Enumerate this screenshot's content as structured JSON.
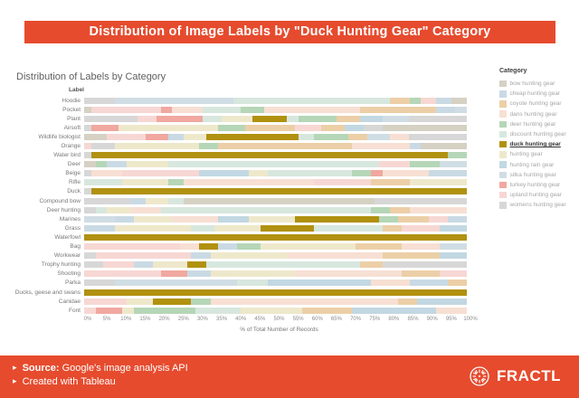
{
  "banner": {
    "title": "Distribution of Image Labels by \"Duck Hunting Gear\" Category"
  },
  "chart": {
    "title": "Distribution of Labels by Category",
    "y_header": "Label",
    "x_label": "% of Total Number of Records"
  },
  "legend": {
    "title": "Category"
  },
  "footer": {
    "bullet": "▸",
    "source_label": "Source:",
    "source_value": "Google's image analysis API",
    "created_line": "Created with Tableau",
    "brand": "FRACTL",
    "bg_color": "#e64b2e"
  },
  "colors": {
    "accent": "#e64b2e",
    "highlight_bar": "#b19110"
  },
  "chart_data": {
    "type": "bar",
    "subtype": "100%-stacked-horizontal",
    "title": "Distribution of Labels by Category",
    "xlabel": "% of Total Number of Records",
    "ylabel": "Label",
    "xlim": [
      0,
      100
    ],
    "grid": false,
    "legend_position": "right",
    "x_ticks": [
      "0%",
      "5%",
      "10%",
      "15%",
      "20%",
      "25%",
      "30%",
      "35%",
      "40%",
      "45%",
      "50%",
      "55%",
      "60%",
      "65%",
      "70%",
      "75%",
      "80%",
      "85%",
      "90%",
      "95%",
      "100%"
    ],
    "highlighted_category": "duck hunting gear",
    "categories": [
      {
        "key": "bow",
        "name": "bow hunting gear",
        "color": "#d5d1c3"
      },
      {
        "key": "cheap",
        "name": "cheap hunting gear",
        "color": "#c9dae4"
      },
      {
        "key": "coyote",
        "name": "coyote hunting gear",
        "color": "#eccfa7"
      },
      {
        "key": "dans",
        "name": "dans hunting gear",
        "color": "#f7dfd3"
      },
      {
        "key": "deer",
        "name": "deer hunting gear",
        "color": "#b5d6b7"
      },
      {
        "key": "discount",
        "name": "discount hunting gear",
        "color": "#d7e7de"
      },
      {
        "key": "duck",
        "name": "duck hunting gear",
        "color": "#b19110"
      },
      {
        "key": "hunting",
        "name": "hunting gear",
        "color": "#eee8cb"
      },
      {
        "key": "rain",
        "name": "hunting rain gear",
        "color": "#c2d8e2"
      },
      {
        "key": "sitka",
        "name": "sitka hunting gear",
        "color": "#d0dde4"
      },
      {
        "key": "turkey",
        "name": "turkey hunting gear",
        "color": "#f0a8a0"
      },
      {
        "key": "upland",
        "name": "upland hunting gear",
        "color": "#f7d7d3"
      },
      {
        "key": "womens",
        "name": "womens hunting gear",
        "color": "#d7d7d7"
      }
    ],
    "rows": [
      {
        "label": "Hoodie",
        "segments": [
          {
            "cat": "womens",
            "pct": 8
          },
          {
            "cat": "sitka",
            "pct": 31
          },
          {
            "cat": "discount",
            "pct": 41
          },
          {
            "cat": "coyote",
            "pct": 5
          },
          {
            "cat": "deer",
            "pct": 3
          },
          {
            "cat": "upland",
            "pct": 4
          },
          {
            "cat": "cheap",
            "pct": 4
          },
          {
            "cat": "bow",
            "pct": 4
          }
        ]
      },
      {
        "label": "Pocket",
        "segments": [
          {
            "cat": "bow",
            "pct": 2
          },
          {
            "cat": "upland",
            "pct": 18
          },
          {
            "cat": "turkey",
            "pct": 3
          },
          {
            "cat": "dans",
            "pct": 8
          },
          {
            "cat": "discount",
            "pct": 10
          },
          {
            "cat": "deer",
            "pct": 6
          },
          {
            "cat": "dans",
            "pct": 25
          },
          {
            "cat": "coyote",
            "pct": 20
          },
          {
            "cat": "cheap",
            "pct": 5
          },
          {
            "cat": "sitka",
            "pct": 3
          }
        ]
      },
      {
        "label": "Plant",
        "segments": [
          {
            "cat": "womens",
            "pct": 14
          },
          {
            "cat": "upland",
            "pct": 5
          },
          {
            "cat": "turkey",
            "pct": 12
          },
          {
            "cat": "discount",
            "pct": 5
          },
          {
            "cat": "hunting",
            "pct": 8
          },
          {
            "cat": "duck",
            "pct": 9
          },
          {
            "cat": "discount",
            "pct": 3
          },
          {
            "cat": "deer",
            "pct": 10
          },
          {
            "cat": "coyote",
            "pct": 6
          },
          {
            "cat": "rain",
            "pct": 6
          },
          {
            "cat": "sitka",
            "pct": 7
          },
          {
            "cat": "womens",
            "pct": 15
          }
        ]
      },
      {
        "label": "Airsoft",
        "segments": [
          {
            "cat": "womens",
            "pct": 2
          },
          {
            "cat": "turkey",
            "pct": 7
          },
          {
            "cat": "hunting",
            "pct": 26
          },
          {
            "cat": "deer",
            "pct": 7
          },
          {
            "cat": "coyote",
            "pct": 13
          },
          {
            "cat": "upland",
            "pct": 7
          },
          {
            "cat": "coyote",
            "pct": 6
          },
          {
            "cat": "rain",
            "pct": 5
          },
          {
            "cat": "womens",
            "pct": 5
          },
          {
            "cat": "bow",
            "pct": 22
          }
        ]
      },
      {
        "label": "Wildlife biologist",
        "segments": [
          {
            "cat": "bow",
            "pct": 6
          },
          {
            "cat": "upland",
            "pct": 10
          },
          {
            "cat": "turkey",
            "pct": 6
          },
          {
            "cat": "cheap",
            "pct": 4
          },
          {
            "cat": "hunting",
            "pct": 6
          },
          {
            "cat": "duck",
            "pct": 24
          },
          {
            "cat": "discount",
            "pct": 4
          },
          {
            "cat": "deer",
            "pct": 9
          },
          {
            "cat": "coyote",
            "pct": 5
          },
          {
            "cat": "sitka",
            "pct": 6
          },
          {
            "cat": "dans",
            "pct": 5
          },
          {
            "cat": "womens",
            "pct": 15
          }
        ]
      },
      {
        "label": "Orange",
        "segments": [
          {
            "cat": "upland",
            "pct": 2
          },
          {
            "cat": "womens",
            "pct": 6
          },
          {
            "cat": "hunting",
            "pct": 22
          },
          {
            "cat": "deer",
            "pct": 5
          },
          {
            "cat": "coyote",
            "pct": 35
          },
          {
            "cat": "dans",
            "pct": 15
          },
          {
            "cat": "cheap",
            "pct": 3
          },
          {
            "cat": "bow",
            "pct": 12
          }
        ]
      },
      {
        "label": "Water bird",
        "segments": [
          {
            "cat": "womens",
            "pct": 2
          },
          {
            "cat": "duck",
            "pct": 93
          },
          {
            "cat": "deer",
            "pct": 5
          }
        ]
      },
      {
        "label": "Deer",
        "segments": [
          {
            "cat": "bow",
            "pct": 3
          },
          {
            "cat": "deer",
            "pct": 3
          },
          {
            "cat": "cheap",
            "pct": 5
          },
          {
            "cat": "hunting",
            "pct": 11
          },
          {
            "cat": "discount",
            "pct": 55
          },
          {
            "cat": "upland",
            "pct": 8
          },
          {
            "cat": "deer",
            "pct": 8
          },
          {
            "cat": "sitka",
            "pct": 7
          }
        ]
      },
      {
        "label": "Beige",
        "segments": [
          {
            "cat": "womens",
            "pct": 2
          },
          {
            "cat": "dans",
            "pct": 8
          },
          {
            "cat": "upland",
            "pct": 20
          },
          {
            "cat": "rain",
            "pct": 13
          },
          {
            "cat": "hunting",
            "pct": 5
          },
          {
            "cat": "discount",
            "pct": 22
          },
          {
            "cat": "deer",
            "pct": 5
          },
          {
            "cat": "turkey",
            "pct": 3
          },
          {
            "cat": "dans",
            "pct": 12
          },
          {
            "cat": "cheap",
            "pct": 10
          }
        ]
      },
      {
        "label": "Rifle",
        "segments": [
          {
            "cat": "discount",
            "pct": 10
          },
          {
            "cat": "hunting",
            "pct": 12
          },
          {
            "cat": "deer",
            "pct": 4
          },
          {
            "cat": "dans",
            "pct": 34
          },
          {
            "cat": "upland",
            "pct": 15
          },
          {
            "cat": "coyote",
            "pct": 10
          },
          {
            "cat": "hunting",
            "pct": 15
          }
        ]
      },
      {
        "label": "Duck",
        "segments": [
          {
            "cat": "womens",
            "pct": 2
          },
          {
            "cat": "duck",
            "pct": 98
          }
        ]
      },
      {
        "label": "Compound bow",
        "segments": [
          {
            "cat": "womens",
            "pct": 12
          },
          {
            "cat": "cheap",
            "pct": 4
          },
          {
            "cat": "hunting",
            "pct": 6
          },
          {
            "cat": "discount",
            "pct": 4
          },
          {
            "cat": "bow",
            "pct": 50
          },
          {
            "cat": "womens",
            "pct": 24
          }
        ]
      },
      {
        "label": "Deer hunting",
        "segments": [
          {
            "cat": "womens",
            "pct": 3
          },
          {
            "cat": "discount",
            "pct": 3
          },
          {
            "cat": "hunting",
            "pct": 6
          },
          {
            "cat": "dans",
            "pct": 8
          },
          {
            "cat": "discount",
            "pct": 55
          },
          {
            "cat": "deer",
            "pct": 5
          },
          {
            "cat": "coyote",
            "pct": 5
          },
          {
            "cat": "dans",
            "pct": 15
          }
        ]
      },
      {
        "label": "Marines",
        "segments": [
          {
            "cat": "sitka",
            "pct": 8
          },
          {
            "cat": "cheap",
            "pct": 5
          },
          {
            "cat": "hunting",
            "pct": 10
          },
          {
            "cat": "dans",
            "pct": 12
          },
          {
            "cat": "rain",
            "pct": 8
          },
          {
            "cat": "hunting",
            "pct": 12
          },
          {
            "cat": "duck",
            "pct": 22
          },
          {
            "cat": "deer",
            "pct": 5
          },
          {
            "cat": "coyote",
            "pct": 8
          },
          {
            "cat": "upland",
            "pct": 5
          },
          {
            "cat": "cheap",
            "pct": 5
          }
        ]
      },
      {
        "label": "Grass",
        "segments": [
          {
            "cat": "cheap",
            "pct": 8
          },
          {
            "cat": "hunting",
            "pct": 20
          },
          {
            "cat": "discount",
            "pct": 6
          },
          {
            "cat": "hunting",
            "pct": 12
          },
          {
            "cat": "duck",
            "pct": 14
          },
          {
            "cat": "discount",
            "pct": 18
          },
          {
            "cat": "coyote",
            "pct": 5
          },
          {
            "cat": "upland",
            "pct": 10
          },
          {
            "cat": "rain",
            "pct": 7
          }
        ]
      },
      {
        "label": "Waterfowl",
        "segments": [
          {
            "cat": "duck",
            "pct": 100
          }
        ]
      },
      {
        "label": "Bag",
        "segments": [
          {
            "cat": "upland",
            "pct": 25
          },
          {
            "cat": "dans",
            "pct": 5
          },
          {
            "cat": "duck",
            "pct": 5
          },
          {
            "cat": "cheap",
            "pct": 5
          },
          {
            "cat": "deer",
            "pct": 6
          },
          {
            "cat": "hunting",
            "pct": 25
          },
          {
            "cat": "coyote",
            "pct": 12
          },
          {
            "cat": "dans",
            "pct": 10
          },
          {
            "cat": "sitka",
            "pct": 7
          }
        ]
      },
      {
        "label": "Workwear",
        "segments": [
          {
            "cat": "womens",
            "pct": 3
          },
          {
            "cat": "upland",
            "pct": 25
          },
          {
            "cat": "cheap",
            "pct": 5
          },
          {
            "cat": "hunting",
            "pct": 20
          },
          {
            "cat": "dans",
            "pct": 25
          },
          {
            "cat": "coyote",
            "pct": 15
          },
          {
            "cat": "rain",
            "pct": 7
          }
        ]
      },
      {
        "label": "Trophy hunting",
        "segments": [
          {
            "cat": "womens",
            "pct": 5
          },
          {
            "cat": "upland",
            "pct": 8
          },
          {
            "cat": "cheap",
            "pct": 5
          },
          {
            "cat": "hunting",
            "pct": 9
          },
          {
            "cat": "duck",
            "pct": 5
          },
          {
            "cat": "discount",
            "pct": 40
          },
          {
            "cat": "coyote",
            "pct": 6
          },
          {
            "cat": "womens",
            "pct": 22
          }
        ]
      },
      {
        "label": "Shooting",
        "segments": [
          {
            "cat": "upland",
            "pct": 20
          },
          {
            "cat": "turkey",
            "pct": 7
          },
          {
            "cat": "cheap",
            "pct": 6
          },
          {
            "cat": "hunting",
            "pct": 22
          },
          {
            "cat": "dans",
            "pct": 28
          },
          {
            "cat": "coyote",
            "pct": 10
          },
          {
            "cat": "upland",
            "pct": 7
          }
        ]
      },
      {
        "label": "Parka",
        "segments": [
          {
            "cat": "womens",
            "pct": 8
          },
          {
            "cat": "sitka",
            "pct": 32
          },
          {
            "cat": "discount",
            "pct": 8
          },
          {
            "cat": "rain",
            "pct": 27
          },
          {
            "cat": "dans",
            "pct": 10
          },
          {
            "cat": "cheap",
            "pct": 10
          },
          {
            "cat": "coyote",
            "pct": 5
          }
        ]
      },
      {
        "label": "Ducks, geese and swans",
        "segments": [
          {
            "cat": "duck",
            "pct": 100
          }
        ]
      },
      {
        "label": "Canidae",
        "segments": [
          {
            "cat": "upland",
            "pct": 11
          },
          {
            "cat": "hunting",
            "pct": 7
          },
          {
            "cat": "duck",
            "pct": 10
          },
          {
            "cat": "deer",
            "pct": 5
          },
          {
            "cat": "dans",
            "pct": 49
          },
          {
            "cat": "coyote",
            "pct": 5
          },
          {
            "cat": "rain",
            "pct": 13
          }
        ]
      },
      {
        "label": "Font",
        "segments": [
          {
            "cat": "upland",
            "pct": 3
          },
          {
            "cat": "turkey",
            "pct": 7
          },
          {
            "cat": "hunting",
            "pct": 3
          },
          {
            "cat": "deer",
            "pct": 16
          },
          {
            "cat": "discount",
            "pct": 12
          },
          {
            "cat": "hunting",
            "pct": 16
          },
          {
            "cat": "coyote",
            "pct": 13
          },
          {
            "cat": "rain",
            "pct": 22
          },
          {
            "cat": "dans",
            "pct": 8
          }
        ]
      }
    ]
  }
}
